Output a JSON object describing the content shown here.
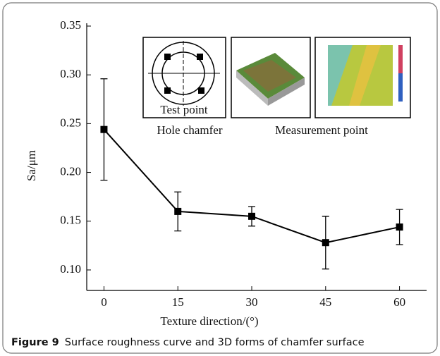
{
  "chart_data": {
    "type": "line",
    "x_label": "Texture direction/(°)",
    "y_label": "Sa/μm",
    "x": [
      0,
      15,
      30,
      45,
      60
    ],
    "series": [
      {
        "color": "#000000",
        "values": [
          0.244,
          0.16,
          0.155,
          0.128,
          0.144
        ],
        "errors": [
          0.052,
          0.02,
          0.01,
          0.027,
          0.018
        ]
      }
    ],
    "xlim": [
      -3.5,
      65.5
    ],
    "xticks": [
      0,
      15,
      30,
      45,
      60
    ],
    "ylim": [
      0.079,
      0.35
    ],
    "yticks": [
      {
        "value": 0.1,
        "label": "0.10"
      },
      0.15,
      {
        "value": 0.2,
        "label": "0.20"
      },
      0.25,
      {
        "value": 0.3,
        "label": "0.30"
      },
      0.35
    ],
    "insets": {
      "test_point": "Test point",
      "hole_chamfer": "Hole  chamfer",
      "measurement_point": "Measurement point"
    }
  },
  "caption": {
    "label": "Figure 9",
    "text": "Surface roughness curve and 3D forms of chamfer surface"
  }
}
